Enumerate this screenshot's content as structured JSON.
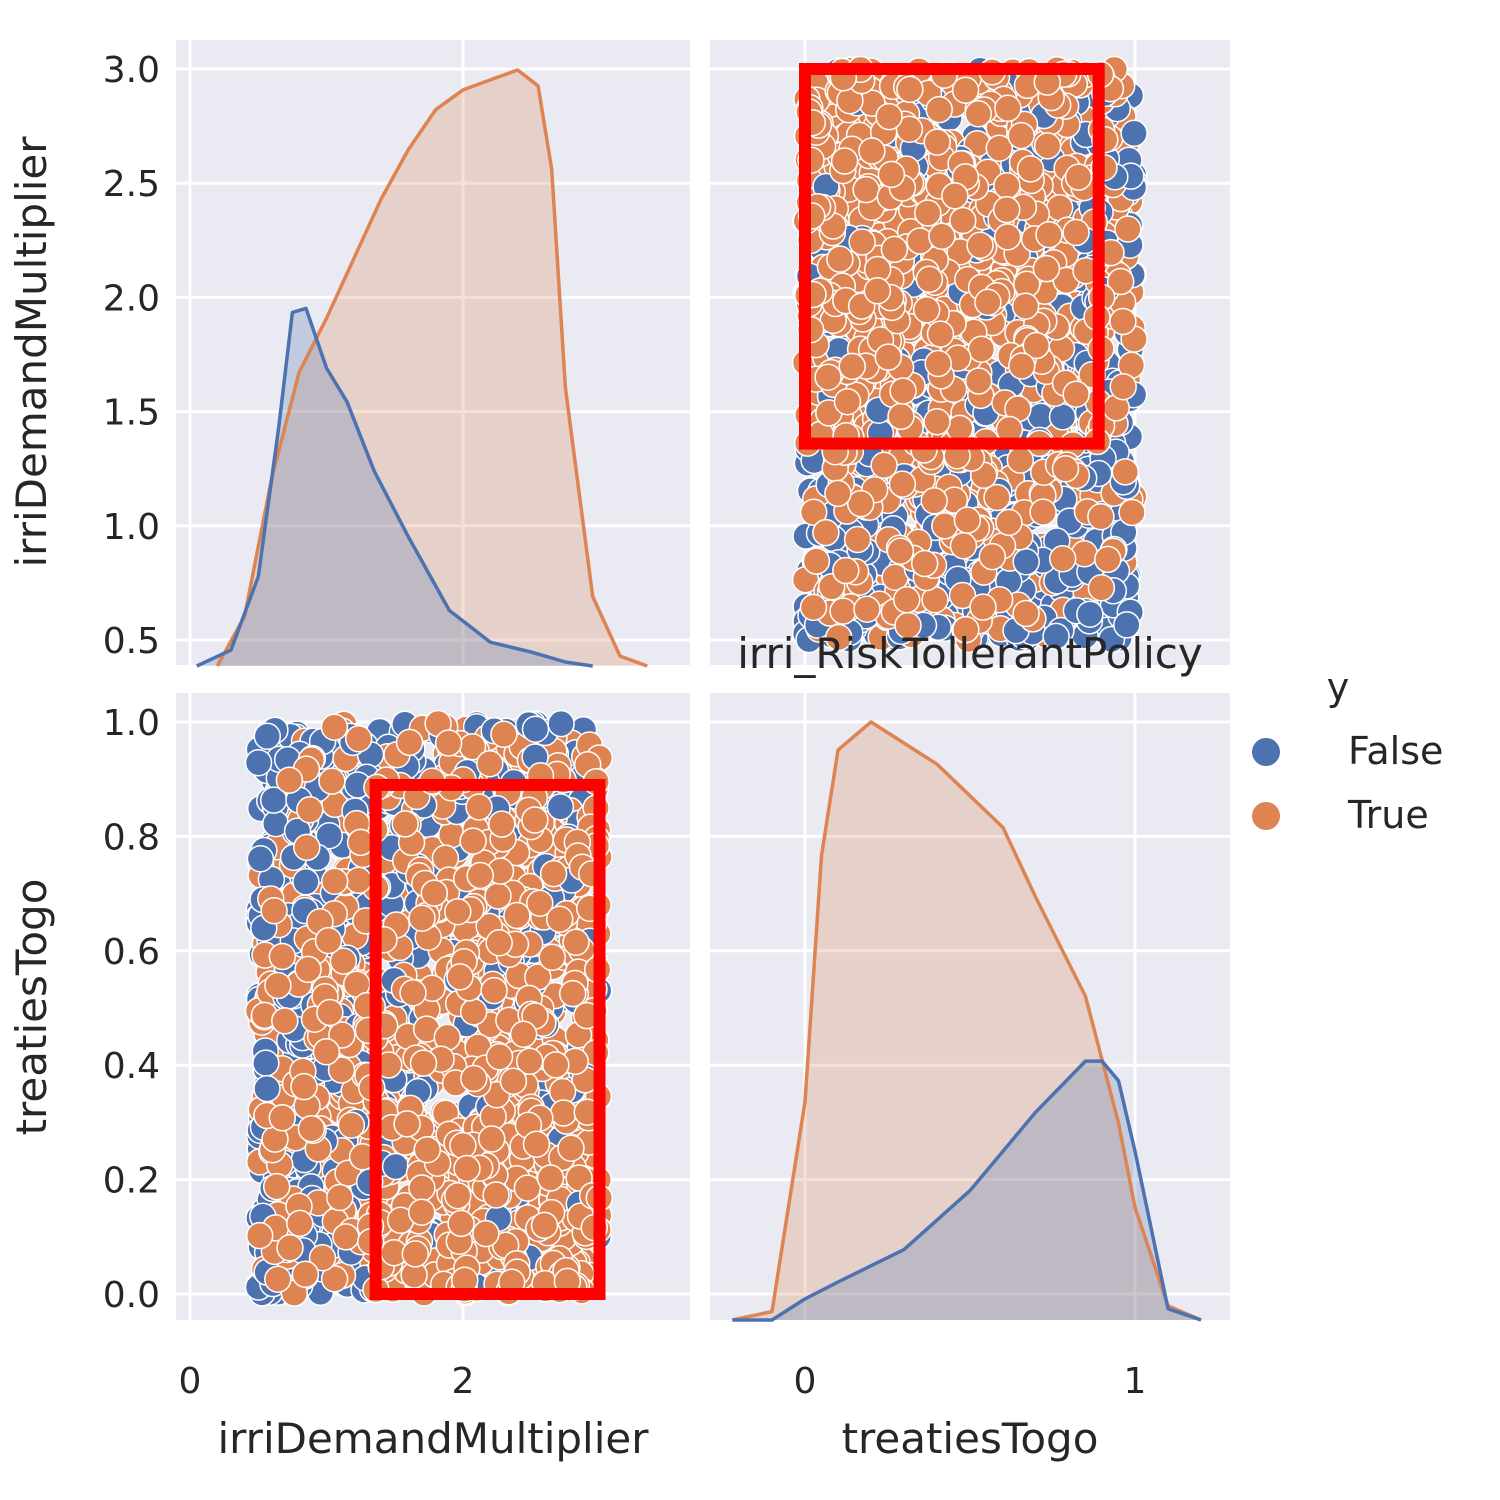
{
  "chart_data": {
    "type": "pairplot",
    "title": "irri_RiskTollerantPolicy",
    "hue_variable": "y",
    "variables": [
      "irriDemandMultiplier",
      "treatiesTogo"
    ],
    "xlabels": [
      "irriDemandMultiplier",
      "treatiesTogo"
    ],
    "ylabels": [
      "irriDemandMultiplier",
      "treatiesTogo"
    ],
    "legend": {
      "title": "y",
      "placement": "center-right",
      "entries": [
        {
          "label": "False",
          "color": "#4c72b0"
        },
        {
          "label": "True",
          "color": "#dd8452"
        }
      ]
    },
    "colors": {
      "False": "#4c72b0",
      "True": "#dd8452",
      "box": "#ff0000",
      "panel_bg": "#eaeaf2",
      "grid": "#ffffff"
    },
    "axes": {
      "irriDemandMultiplier": {
        "range": [
          -0.05,
          3.6
        ],
        "ticks_as_x": [
          "0",
          "2"
        ],
        "ticks_as_x_values": [
          0,
          2
        ],
        "value_range": [
          0.4,
          3.0
        ],
        "ticks_as_y": [
          "0.5",
          "1.0",
          "1.5",
          "2.0",
          "2.5",
          "3.0"
        ],
        "ticks_as_y_values": [
          0.5,
          1.0,
          1.5,
          2.0,
          2.5,
          3.0
        ]
      },
      "treatiesTogo": {
        "range": [
          -0.3,
          1.3
        ],
        "ticks_as_x": [
          "0",
          "1"
        ],
        "ticks_as_x_values": [
          0,
          1
        ],
        "value_range": [
          0.0,
          1.0
        ],
        "ticks_as_y": [
          "0.0",
          "0.2",
          "0.4",
          "0.6",
          "0.8",
          "1.0"
        ],
        "ticks_as_y_values": [
          0.0,
          0.2,
          0.4,
          0.6,
          0.8,
          1.0
        ]
      }
    },
    "kde_irriDemandMultiplier": {
      "False": {
        "x": [
          0.05,
          0.3,
          0.5,
          0.65,
          0.75,
          0.85,
          1.0,
          1.15,
          1.35,
          1.6,
          1.9,
          2.2,
          2.5,
          2.75,
          2.95
        ],
        "y": [
          0.0,
          0.08,
          0.45,
          1.2,
          1.78,
          1.8,
          1.5,
          1.33,
          0.98,
          0.65,
          0.28,
          0.12,
          0.07,
          0.02,
          0.0
        ]
      },
      "True": {
        "x": [
          0.2,
          0.4,
          0.6,
          0.8,
          1.0,
          1.2,
          1.4,
          1.6,
          1.8,
          2.0,
          2.2,
          2.4,
          2.55,
          2.65,
          2.75,
          2.95,
          3.15,
          3.35
        ],
        "y": [
          0.0,
          0.25,
          0.95,
          1.48,
          1.75,
          2.05,
          2.35,
          2.6,
          2.8,
          2.9,
          2.95,
          3.0,
          2.92,
          2.5,
          1.4,
          0.35,
          0.05,
          0.0
        ]
      }
    },
    "kde_treatiesTogo": {
      "False": {
        "x": [
          -0.22,
          -0.1,
          0.0,
          0.1,
          0.3,
          0.5,
          0.7,
          0.85,
          0.9,
          0.95,
          1.0,
          1.1,
          1.2
        ],
        "y": [
          0.0,
          0.0,
          0.15,
          0.27,
          0.5,
          0.92,
          1.48,
          1.84,
          1.84,
          1.7,
          1.2,
          0.08,
          0.0
        ]
      },
      "True": {
        "x": [
          -0.22,
          -0.1,
          0.0,
          0.05,
          0.1,
          0.2,
          0.4,
          0.6,
          0.7,
          0.85,
          0.95,
          1.0,
          1.1,
          1.2
        ],
        "y": [
          0.0,
          0.06,
          1.55,
          3.3,
          4.05,
          4.25,
          3.95,
          3.5,
          3.0,
          2.3,
          1.4,
          0.8,
          0.1,
          0.0
        ]
      }
    },
    "scatter": {
      "points_per_class_shown": 900,
      "false_share_by_irriDemand": [
        [
          0.5,
          0.85
        ],
        [
          1.0,
          0.55
        ],
        [
          1.5,
          0.2
        ],
        [
          2.0,
          0.1
        ],
        [
          2.5,
          0.05
        ],
        [
          3.0,
          0.03
        ]
      ],
      "false_share_by_treatiesTogo": [
        [
          0.0,
          0.1
        ],
        [
          0.5,
          0.25
        ],
        [
          0.8,
          0.55
        ],
        [
          1.0,
          0.85
        ]
      ],
      "irriDemandMultiplier_range": [
        0.5,
        3.0
      ],
      "treatiesTogo_range": [
        0.0,
        1.0
      ]
    },
    "boxes": [
      {
        "panel": "treatiesTogo_vs_irriDemandMultiplier",
        "x_range": [
          0.0,
          0.89
        ],
        "y_range": [
          1.36,
          3.0
        ],
        "color": "#ff0000"
      },
      {
        "panel": "irriDemandMultiplier_vs_treatiesTogo",
        "x_range": [
          1.36,
          3.0
        ],
        "y_range": [
          0.0,
          0.89
        ],
        "color": "#ff0000"
      }
    ]
  }
}
